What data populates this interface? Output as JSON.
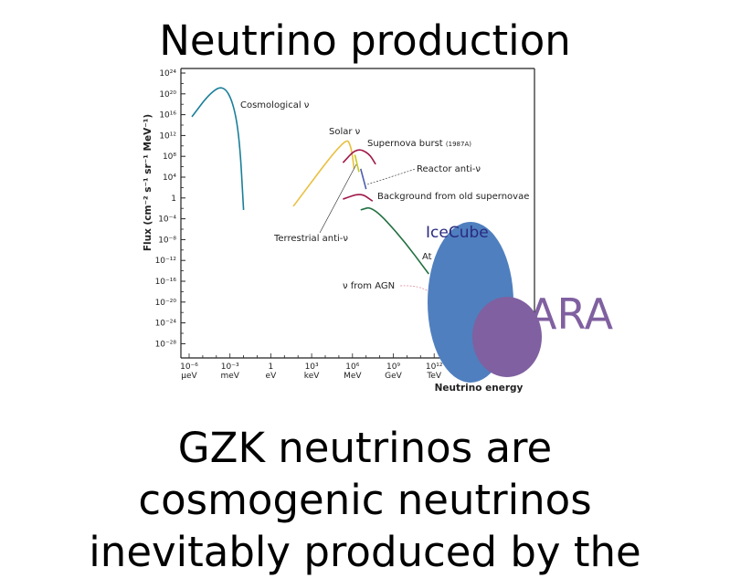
{
  "slide": {
    "title": "Neutrino production",
    "body_lines": [
      "GZK neutrinos are",
      "cosmogenic neutrinos",
      "inevitably produced by the"
    ]
  },
  "chart_data": {
    "type": "line",
    "xlabel": "Neutrino energy",
    "ylabel": "Flux (cm⁻² s⁻¹ sr⁻¹ MeV⁻¹)",
    "x_scale": "log",
    "y_scale": "log",
    "x_ticks": [
      {
        "value": 1e-06,
        "label": "10⁻⁶",
        "unit": "µeV"
      },
      {
        "value": 0.001,
        "label": "10⁻³",
        "unit": "meV"
      },
      {
        "value": 1,
        "label": "1",
        "unit": "eV"
      },
      {
        "value": 1000.0,
        "label": "10³",
        "unit": "keV"
      },
      {
        "value": 1000000.0,
        "label": "10⁶",
        "unit": "MeV"
      },
      {
        "value": 1000000000.0,
        "label": "10⁹",
        "unit": "GeV"
      },
      {
        "value": 1000000000000.0,
        "label": "10¹²",
        "unit": "TeV"
      },
      {
        "value": 1000000000000000.0,
        "label": "",
        "unit": "eV"
      }
    ],
    "y_ticks": [
      {
        "value": 1e+24,
        "label": "10²⁴"
      },
      {
        "value": 1e+20,
        "label": "10²⁰"
      },
      {
        "value": 1e+16,
        "label": "10¹⁶"
      },
      {
        "value": 1000000000000.0,
        "label": "10¹²"
      },
      {
        "value": 100000000.0,
        "label": "10⁸"
      },
      {
        "value": 10000.0,
        "label": "10⁴"
      },
      {
        "value": 1,
        "label": "1"
      },
      {
        "value": 0.0001,
        "label": "10⁻⁴"
      },
      {
        "value": 1e-08,
        "label": "10⁻⁸"
      },
      {
        "value": 1e-12,
        "label": "10⁻¹²"
      },
      {
        "value": 1e-16,
        "label": "10⁻¹⁶"
      },
      {
        "value": 1e-20,
        "label": "10⁻²⁰"
      },
      {
        "value": 1e-24,
        "label": "10⁻²⁴"
      },
      {
        "value": 1e-28,
        "label": "10⁻²⁸"
      }
    ],
    "series": [
      {
        "name": "Cosmological ν",
        "color": "#1a7f9a",
        "points": [
          [
            1.6e-06,
            4000000000000000.0
          ],
          [
            3e-05,
            1e+20
          ],
          [
            0.0003,
            5e+21
          ],
          [
            0.0016,
            5e+18
          ],
          [
            0.005,
            500000000000.0
          ],
          [
            0.01,
            0.005
          ]
        ]
      },
      {
        "name": "Solar ν",
        "color": "#e8c040",
        "points": [
          [
            45,
            0.025
          ],
          [
            300000.0,
            500000000000.0
          ],
          [
            800000.0,
            10000000000.0
          ],
          [
            1300000.0,
            400000.0
          ]
        ]
      },
      {
        "name": "Supernova burst (1987A)",
        "color": "#a01848",
        "points": [
          [
            200000.0,
            6000000.0
          ],
          [
            2000000.0,
            4000000000.0
          ],
          [
            16000000.0,
            400000000.0
          ],
          [
            50000000.0,
            3000000.0
          ]
        ]
      },
      {
        "name": "Reactor anti-ν",
        "color": "#5060b0",
        "points": [
          [
            4000000.0,
            400000.0
          ],
          [
            10000000.0,
            50
          ]
        ]
      },
      {
        "name": "Background from old supernovae",
        "color": "#a01848",
        "points": [
          [
            200000.0,
            0.6
          ],
          [
            4000000.0,
            10
          ],
          [
            30000000.0,
            0.25
          ]
        ]
      },
      {
        "name": "Terrestrial anti-ν",
        "color": "#c8c820",
        "points": [
          [
            1500000.0,
            200000000.0
          ],
          [
            3000000.0,
            100000.0
          ]
        ]
      },
      {
        "name": "Atmospheric",
        "color": "#207040",
        "points": [
          [
            4000000.0,
            0.005
          ],
          [
            30000000.0,
            0.025
          ],
          [
            4000000000.0,
            2.5e-08
          ],
          [
            400000000000.0,
            2.5e-15
          ]
        ]
      },
      {
        "name": "ν from AGN",
        "color": "#e090a0",
        "points": []
      }
    ],
    "series_labels": {
      "cosmological": "Cosmological ν",
      "solar": "Solar ν",
      "supernova": "Supernova burst",
      "supernova_year": "(1987A)",
      "reactor": "Reactor anti-ν",
      "background": "Background from old supernovae",
      "terrestrial": "Terrestrial anti-ν",
      "atmospheric": "At",
      "agn": "ν from AGN"
    },
    "overlays": [
      {
        "name": "IceCube",
        "color": "#4f7fbf",
        "label_color": "#2a2a80"
      },
      {
        "name": "ARA",
        "color": "#8060a0",
        "label_color": "#8060a0"
      }
    ]
  }
}
